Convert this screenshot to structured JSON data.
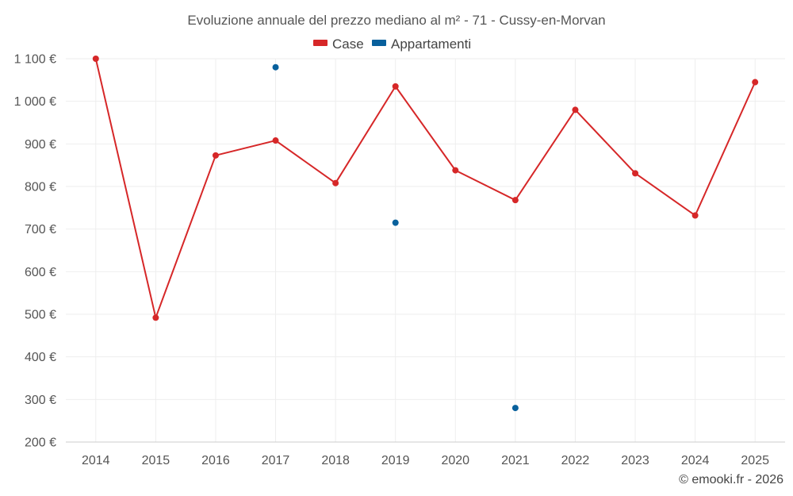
{
  "chart_data": {
    "type": "line",
    "title": "Evoluzione annuale del prezzo mediano al m² - 71 - Cussy-en-Morvan",
    "categories": [
      "2014",
      "2015",
      "2016",
      "2017",
      "2018",
      "2019",
      "2020",
      "2021",
      "2022",
      "2023",
      "2024",
      "2025"
    ],
    "y_tick_labels": [
      "200 €",
      "300 €",
      "400 €",
      "500 €",
      "600 €",
      "700 €",
      "800 €",
      "900 €",
      "1 000 €",
      "1 100 €"
    ],
    "y_ticks": [
      200,
      300,
      400,
      500,
      600,
      700,
      800,
      900,
      1000,
      1100
    ],
    "ylim": [
      200,
      1100
    ],
    "series": [
      {
        "name": "Case",
        "color": "#d62728",
        "line": true,
        "values": [
          1100,
          492,
          873,
          908,
          808,
          1035,
          838,
          768,
          980,
          831,
          732,
          1045
        ]
      },
      {
        "name": "Appartamenti",
        "color": "#08609c",
        "line": false,
        "values": [
          null,
          null,
          null,
          1080,
          null,
          715,
          null,
          280,
          null,
          null,
          null,
          null
        ]
      }
    ],
    "legend_position": "top-center",
    "grid": true
  },
  "credit": "© emooki.fr - 2026"
}
